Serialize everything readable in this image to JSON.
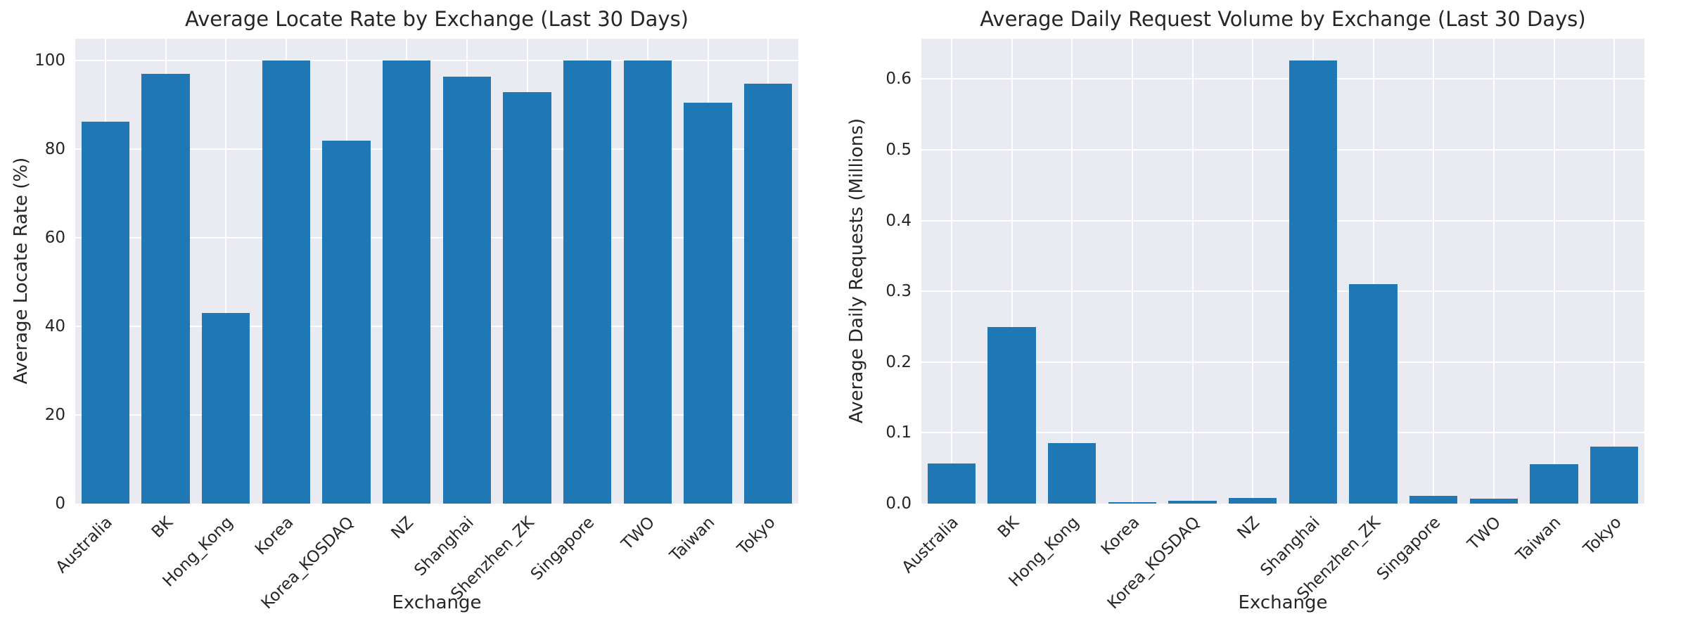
{
  "colors": {
    "bar": "#1f77b4",
    "plot_background": "#eaeaf2",
    "grid": "#ffffff",
    "text": "#262626",
    "figure_background": "#ffffff"
  },
  "chart_data": [
    {
      "type": "bar",
      "title": "Average Locate Rate by Exchange (Last 30 Days)",
      "xlabel": "Exchange",
      "ylabel": "Average Locate Rate (%)",
      "categories": [
        "Australia",
        "BK",
        "Hong_Kong",
        "Korea",
        "Korea_KOSDAQ",
        "NZ",
        "Shanghai",
        "Shenzhen_ZK",
        "Singapore",
        "TWO",
        "Taiwan",
        "Tokyo"
      ],
      "values": [
        86.2,
        97.0,
        43.1,
        100.0,
        82.0,
        100.0,
        96.4,
        93.0,
        100.0,
        100.0,
        90.6,
        94.8
      ],
      "ylim": [
        0,
        105
      ],
      "yticks": [
        0,
        20,
        40,
        60,
        80,
        100
      ],
      "ytick_labels": [
        "0",
        "20",
        "40",
        "60",
        "80",
        "100"
      ],
      "grid": "on",
      "legend": "none"
    },
    {
      "type": "bar",
      "title": "Average Daily Request Volume by Exchange (Last 30 Days)",
      "xlabel": "Exchange",
      "ylabel": "Average Daily Requests (Millions)",
      "categories": [
        "Australia",
        "BK",
        "Hong_Kong",
        "Korea",
        "Korea_KOSDAQ",
        "NZ",
        "Shanghai",
        "Shenzhen_ZK",
        "Singapore",
        "TWO",
        "Taiwan",
        "Tokyo"
      ],
      "values": [
        0.057,
        0.249,
        0.085,
        0.002,
        0.004,
        0.008,
        0.626,
        0.31,
        0.011,
        0.007,
        0.056,
        0.081
      ],
      "ylim": [
        0,
        0.657
      ],
      "yticks": [
        0.0,
        0.1,
        0.2,
        0.3,
        0.4,
        0.5,
        0.6
      ],
      "ytick_labels": [
        "0.0",
        "0.1",
        "0.2",
        "0.3",
        "0.4",
        "0.5",
        "0.6"
      ],
      "grid": "on",
      "legend": "none"
    }
  ]
}
